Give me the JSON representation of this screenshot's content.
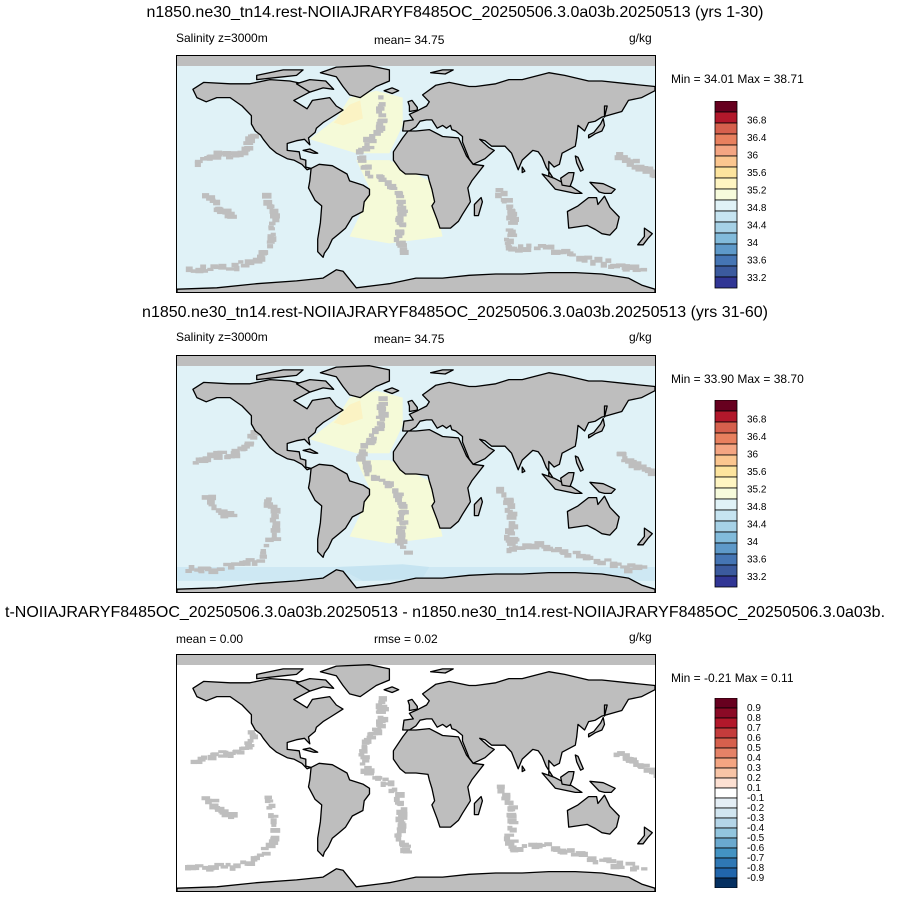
{
  "colors": {
    "land": "#bebebe",
    "coast": "#000000",
    "salinity_ocean": "#e0f2f7",
    "salinity_atlantic": "#f5fad8",
    "salinity_atlantic_hi": "#fbf3c4",
    "salinity_southern": "#c6e4f1",
    "diff_ocean": "#ffffff",
    "diff_land": "#bebebe"
  },
  "chart_data": [
    {
      "type": "heatmap",
      "title": "n1850.ne30_tn14.rest-NOIIAJRARYF8485OC_20250506.3.0a03b.20250513 (yrs 1-30)",
      "left_label": "Salinity z=3000m",
      "center_label": "mean=  34.75",
      "units": "g/kg",
      "min_max": "Min =  34.01 Max =  38.71",
      "colorbar_labels": [
        "36.8",
        "36.4",
        "36",
        "35.6",
        "35.2",
        "34.8",
        "34.4",
        "34",
        "33.6",
        "33.2"
      ],
      "colorbar_colors": [
        "#67001f",
        "#b2182b",
        "#d6604d",
        "#e8805e",
        "#f4a582",
        "#fbc68f",
        "#fde49e",
        "#fff5c2",
        "#f7fbdc",
        "#e0f2f7",
        "#c6e4f1",
        "#a6d1e6",
        "#82bbdb",
        "#5e99c9",
        "#4575b4",
        "#3b5a9e",
        "#313695"
      ],
      "lon_range": [
        -180,
        180
      ],
      "lat_range": [
        -80,
        90
      ]
    },
    {
      "type": "heatmap",
      "title": "n1850.ne30_tn14.rest-NOIIAJRARYF8485OC_20250506.3.0a03b.20250513 (yrs 31-60)",
      "left_label": "Salinity z=3000m",
      "center_label": "mean=  34.75",
      "units": "g/kg",
      "min_max": "Min =  33.90 Max =  38.70",
      "colorbar_labels": [
        "36.8",
        "36.4",
        "36",
        "35.6",
        "35.2",
        "34.8",
        "34.4",
        "34",
        "33.6",
        "33.2"
      ],
      "colorbar_colors": [
        "#67001f",
        "#b2182b",
        "#d6604d",
        "#e8805e",
        "#f4a582",
        "#fbc68f",
        "#fde49e",
        "#fff5c2",
        "#f7fbdc",
        "#e0f2f7",
        "#c6e4f1",
        "#a6d1e6",
        "#82bbdb",
        "#5e99c9",
        "#4575b4",
        "#3b5a9e",
        "#313695"
      ],
      "lon_range": [
        -180,
        180
      ],
      "lat_range": [
        -80,
        90
      ]
    },
    {
      "type": "heatmap",
      "title": "t-NOIIAJRARYF8485OC_20250506.3.0a03b.20250513 - n1850.ne30_tn14.rest-NOIIAJRARYF8485OC_20250506.3.0a03b.",
      "left_label": "mean =   0.00",
      "center_label": "rmse =   0.02",
      "units": "g/kg",
      "min_max": "Min =  -0.21 Max =   0.11",
      "colorbar_labels": [
        "0.9",
        "0.8",
        "0.7",
        "0.6",
        "0.5",
        "0.4",
        "0.3",
        "0.2",
        "0.1",
        "-0.1",
        "-0.2",
        "-0.3",
        "-0.4",
        "-0.5",
        "-0.6",
        "-0.7",
        "-0.8",
        "-0.9"
      ],
      "colorbar_colors": [
        "#67001f",
        "#8b0a26",
        "#b2182b",
        "#c43c3c",
        "#d6604d",
        "#e58267",
        "#f4a582",
        "#f8c4a6",
        "#fde0d2",
        "#ffffff",
        "#e4eef5",
        "#d1e5f0",
        "#b4d5e8",
        "#92c5de",
        "#6aa9cf",
        "#4393c3",
        "#2f78b5",
        "#2166ac",
        "#053061"
      ],
      "lon_range": [
        -180,
        180
      ],
      "lat_range": [
        -80,
        90
      ]
    }
  ]
}
